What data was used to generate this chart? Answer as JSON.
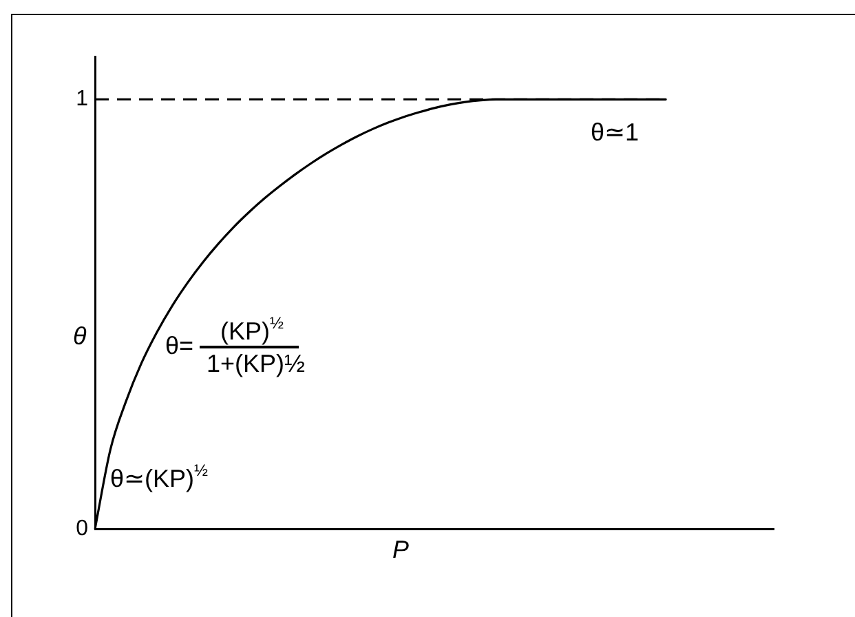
{
  "chart_data": {
    "type": "line",
    "xlabel": "P",
    "ylabel": "θ",
    "categories": [
      null,
      null,
      null,
      null,
      null,
      null,
      null,
      null,
      null,
      null,
      null,
      null,
      null,
      null,
      null,
      null,
      null,
      null,
      null,
      null,
      null,
      null,
      null,
      null,
      null,
      null,
      null,
      null,
      null,
      null,
      null,
      null,
      null,
      null,
      null,
      null,
      null,
      null,
      null,
      null,
      null,
      null,
      null,
      null,
      null
    ],
    "values": [
      0,
      0.185,
      0.296,
      0.385,
      0.457,
      0.519,
      0.573,
      0.621,
      0.664,
      0.703,
      0.738,
      0.77,
      0.799,
      0.826,
      0.851,
      0.874,
      0.895,
      0.914,
      0.931,
      0.946,
      0.959,
      0.97,
      0.98,
      0.988,
      0.994,
      0.998,
      1,
      1,
      1,
      1,
      1,
      1,
      1,
      1,
      1,
      1,
      1,
      1,
      null,
      null,
      null,
      null,
      null,
      null,
      null
    ],
    "color": "#000000",
    "ylim": [
      0,
      1.1
    ],
    "yticks": [
      0,
      1
    ],
    "tick_labels": "y",
    "marker": "none",
    "ref_lines": [
      {
        "axis": "y",
        "value": 1,
        "color": "#000000",
        "line_style": "dashed"
      }
    ],
    "annotations": [
      "θ=",
      "(KP)$^{½}$",
      "1+(KP)½",
      "θ≃(KP)$^{½}$",
      "θ≃1"
    ]
  }
}
